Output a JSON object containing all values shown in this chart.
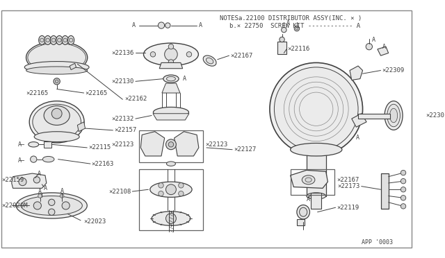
{
  "bg_color": "#ffffff",
  "line_color": "#404040",
  "text_color": "#404040",
  "border_color": "#888888",
  "notes1": "NOTESa.22100 DISTRIBUTOR ASSY(INC. × )",
  "notes2": "b.× 22750  SCREW KIT ------------ A",
  "app_code": "APP '0003",
  "figsize": [
    6.4,
    3.72
  ],
  "dpi": 100
}
